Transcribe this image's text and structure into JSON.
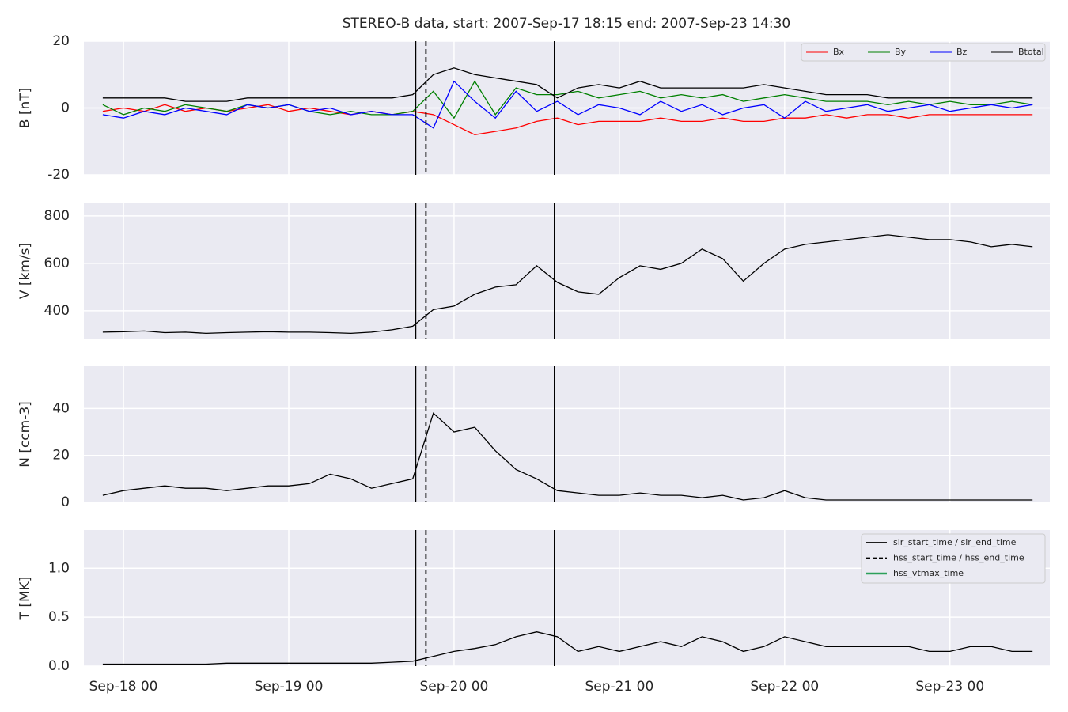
{
  "chart_data": [
    {
      "type": "line",
      "title": "STEREO-B data, start: 2007-Sep-17 18:15  end: 2007-Sep-23 14:30",
      "ylabel": "B [nT]",
      "x": [
        "2007-09-17 21:00",
        "2007-09-18 00:00",
        "2007-09-18 03:00",
        "2007-09-18 06:00",
        "2007-09-18 09:00",
        "2007-09-18 12:00",
        "2007-09-18 15:00",
        "2007-09-18 18:00",
        "2007-09-18 21:00",
        "2007-09-19 00:00",
        "2007-09-19 03:00",
        "2007-09-19 06:00",
        "2007-09-19 09:00",
        "2007-09-19 12:00",
        "2007-09-19 15:00",
        "2007-09-19 18:00",
        "2007-09-19 21:00",
        "2007-09-20 00:00",
        "2007-09-20 03:00",
        "2007-09-20 06:00",
        "2007-09-20 09:00",
        "2007-09-20 12:00",
        "2007-09-20 15:00",
        "2007-09-20 18:00",
        "2007-09-20 21:00",
        "2007-09-21 00:00",
        "2007-09-21 03:00",
        "2007-09-21 06:00",
        "2007-09-21 09:00",
        "2007-09-21 12:00",
        "2007-09-21 15:00",
        "2007-09-21 18:00",
        "2007-09-21 21:00",
        "2007-09-22 00:00",
        "2007-09-22 03:00",
        "2007-09-22 06:00",
        "2007-09-22 09:00",
        "2007-09-22 12:00",
        "2007-09-22 15:00",
        "2007-09-22 18:00",
        "2007-09-22 21:00",
        "2007-09-23 00:00",
        "2007-09-23 03:00",
        "2007-09-23 06:00",
        "2007-09-23 09:00",
        "2007-09-23 12:00"
      ],
      "xlim": [
        "2007-09-17 18:15",
        "2007-09-23 14:30"
      ],
      "xticks": [
        {
          "value": "2007-09-18 00:00",
          "label": "Sep-18 00"
        },
        {
          "value": "2007-09-19 00:00",
          "label": "Sep-19 00"
        },
        {
          "value": "2007-09-20 00:00",
          "label": "Sep-20 00"
        },
        {
          "value": "2007-09-21 00:00",
          "label": "Sep-21 00"
        },
        {
          "value": "2007-09-22 00:00",
          "label": "Sep-22 00"
        },
        {
          "value": "2007-09-23 00:00",
          "label": "Sep-23 00"
        }
      ],
      "ylim": [
        -20,
        20
      ],
      "yticks": [
        -20,
        0,
        20
      ],
      "grid": true,
      "legend": "upper right",
      "series": [
        {
          "name": "Bx",
          "color": "#ff0000",
          "values": [
            -1,
            0,
            -1,
            1,
            -1,
            0,
            -1,
            0,
            1,
            -1,
            0,
            -1,
            -2,
            -1,
            -2,
            -1,
            -2,
            -5,
            -8,
            -7,
            -6,
            -4,
            -3,
            -5,
            -4,
            -4,
            -4,
            -3,
            -4,
            -4,
            -3,
            -4,
            -4,
            -3,
            -3,
            -2,
            -3,
            -2,
            -2,
            -3,
            -2,
            -2,
            -2,
            -2,
            -2,
            -2
          ]
        },
        {
          "name": "By",
          "color": "#008000",
          "values": [
            1,
            -2,
            0,
            -1,
            1,
            0,
            -1,
            1,
            0,
            1,
            -1,
            -2,
            -1,
            -2,
            -2,
            -1,
            5,
            -3,
            8,
            -2,
            6,
            4,
            4,
            5,
            3,
            4,
            5,
            3,
            4,
            3,
            4,
            2,
            3,
            4,
            3,
            2,
            2,
            2,
            1,
            2,
            1,
            2,
            1,
            1,
            2,
            1
          ]
        },
        {
          "name": "Bz",
          "color": "#0000ff",
          "values": [
            -2,
            -3,
            -1,
            -2,
            0,
            -1,
            -2,
            1,
            0,
            1,
            -1,
            0,
            -2,
            -1,
            -2,
            -2,
            -6,
            8,
            2,
            -3,
            5,
            -1,
            2,
            -2,
            1,
            0,
            -2,
            2,
            -1,
            1,
            -2,
            0,
            1,
            -3,
            2,
            -1,
            0,
            1,
            -1,
            0,
            1,
            -1,
            0,
            1,
            0,
            1
          ]
        },
        {
          "name": "Btotal",
          "color": "#000000",
          "values": [
            3,
            3,
            3,
            3,
            2,
            2,
            2,
            3,
            3,
            3,
            3,
            3,
            3,
            3,
            3,
            4,
            10,
            12,
            10,
            9,
            8,
            7,
            3,
            6,
            7,
            6,
            8,
            6,
            6,
            6,
            6,
            6,
            7,
            6,
            5,
            4,
            4,
            4,
            3,
            3,
            3,
            3,
            3,
            3,
            3,
            3
          ]
        }
      ]
    },
    {
      "type": "line",
      "ylabel": "V [km/s]",
      "ylim": [
        283,
        853
      ],
      "yticks": [
        400,
        600,
        800
      ],
      "grid": true,
      "series": [
        {
          "color": "#000000",
          "values": [
            310,
            312,
            315,
            308,
            310,
            305,
            308,
            310,
            312,
            310,
            310,
            308,
            305,
            310,
            320,
            335,
            405,
            420,
            470,
            500,
            510,
            590,
            520,
            480,
            470,
            540,
            590,
            575,
            600,
            660,
            620,
            525,
            600,
            660,
            680,
            690,
            700,
            710,
            720,
            710,
            700,
            700,
            690,
            670,
            680,
            670
          ]
        }
      ]
    },
    {
      "type": "line",
      "ylabel": "N [ccm-3]",
      "ylim": [
        0,
        58
      ],
      "yticks": [
        0,
        20,
        40
      ],
      "grid": true,
      "series": [
        {
          "color": "#000000",
          "values": [
            3,
            5,
            6,
            7,
            6,
            6,
            5,
            6,
            7,
            7,
            8,
            12,
            10,
            6,
            8,
            10,
            38,
            30,
            32,
            22,
            14,
            10,
            5,
            4,
            3,
            3,
            4,
            3,
            3,
            2,
            3,
            1,
            2,
            5,
            2,
            1,
            1,
            1,
            1,
            1,
            1,
            1,
            1,
            1,
            1,
            1
          ]
        }
      ]
    },
    {
      "type": "line",
      "ylabel": "T [MK]",
      "ylim": [
        0,
        1.39
      ],
      "yticks": [
        {
          "value": 0,
          "label": "0.0"
        },
        0.5,
        {
          "value": 1,
          "label": "1.0"
        }
      ],
      "grid": true,
      "legend": "upper right",
      "series": [
        {
          "color": "#000000",
          "values": [
            0.02,
            0.02,
            0.02,
            0.02,
            0.02,
            0.02,
            0.03,
            0.03,
            0.03,
            0.03,
            0.03,
            0.03,
            0.03,
            0.03,
            0.04,
            0.05,
            0.1,
            0.15,
            0.18,
            0.22,
            0.3,
            0.35,
            0.3,
            0.15,
            0.2,
            0.15,
            0.2,
            0.25,
            0.2,
            0.3,
            0.25,
            0.15,
            0.2,
            0.3,
            0.25,
            0.2,
            0.2,
            0.2,
            0.2,
            0.2,
            0.15,
            0.15,
            0.2,
            0.2,
            0.15,
            0.15
          ]
        }
      ],
      "events": [
        {
          "name": "sir_start_time / sir_end_time",
          "color": "#000000",
          "style": "solid",
          "times": [
            "2007-09-19 18:25",
            "2007-09-20 14:35"
          ]
        },
        {
          "name": "hss_start_time / hss_end_time",
          "color": "#000000",
          "style": "dashed",
          "times": [
            "2007-09-19 19:55"
          ]
        },
        {
          "name": "hss_vtmax_time",
          "color": "#2ca05a",
          "style": "solid"
        }
      ]
    }
  ]
}
